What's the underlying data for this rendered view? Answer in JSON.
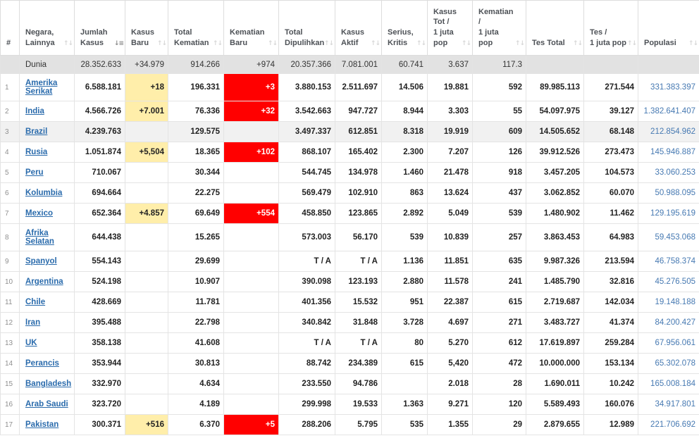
{
  "icons": {
    "sort_both": "↑↓",
    "sort_desc": "↓≡"
  },
  "colors": {
    "new_cases_bg": "#FFEEAA",
    "new_deaths_bg": "#FF0000",
    "new_deaths_text": "#FFFFFF",
    "world_row_bg": "#E2E2E2",
    "highlight_row_bg": "#F1F1F1",
    "country_link_blue": "#2A6BAC",
    "population_blue": "#4679B2"
  },
  "table": {
    "columns": [
      {
        "key": "rank",
        "label_lines": [
          "#"
        ],
        "sortable": false,
        "sort": "none"
      },
      {
        "key": "country",
        "label_lines": [
          "Negara,",
          "Lainnya"
        ],
        "sortable": true,
        "sort": "none"
      },
      {
        "key": "total_cases",
        "label_lines": [
          "Jumlah",
          "Kasus"
        ],
        "sortable": true,
        "sort": "desc"
      },
      {
        "key": "new_cases",
        "label_lines": [
          "Kasus",
          "Baru"
        ],
        "sortable": true,
        "sort": "none"
      },
      {
        "key": "total_deaths",
        "label_lines": [
          "Total",
          "Kematian"
        ],
        "sortable": true,
        "sort": "none"
      },
      {
        "key": "new_deaths",
        "label_lines": [
          "Kematian",
          "Baru"
        ],
        "sortable": true,
        "sort": "none"
      },
      {
        "key": "total_recovered",
        "label_lines": [
          "Total",
          "Dipulihkan"
        ],
        "sortable": true,
        "sort": "none"
      },
      {
        "key": "active_cases",
        "label_lines": [
          "Kasus",
          "Aktif"
        ],
        "sortable": true,
        "sort": "none"
      },
      {
        "key": "serious_critical",
        "label_lines": [
          "Serius,",
          "Kritis"
        ],
        "sortable": true,
        "sort": "none"
      },
      {
        "key": "cases_per_1m",
        "label_lines": [
          "Kasus",
          "Tot /",
          "1 juta",
          "pop"
        ],
        "sortable": true,
        "sort": "none"
      },
      {
        "key": "deaths_per_1m",
        "label_lines": [
          "Kematian",
          "/",
          "1 juta",
          "pop"
        ],
        "sortable": true,
        "sort": "none"
      },
      {
        "key": "total_tests",
        "label_lines": [
          "Tes Total"
        ],
        "sortable": true,
        "sort": "none"
      },
      {
        "key": "tests_per_1m",
        "label_lines": [
          "Tes /",
          "1 juta pop"
        ],
        "sortable": true,
        "sort": "none"
      },
      {
        "key": "population",
        "label_lines": [
          "Populasi"
        ],
        "sortable": true,
        "sort": "none"
      }
    ],
    "rows": [
      {
        "world": true,
        "rank": "",
        "country": "Dunia",
        "total_cases": "28.352.633",
        "new_cases": "+34.979",
        "total_deaths": "914.266",
        "new_deaths": "+974",
        "total_recovered": "20.357.366",
        "active_cases": "7.081.001",
        "serious_critical": "60.741",
        "cases_per_1m": "3.637",
        "deaths_per_1m": "117.3",
        "total_tests": "",
        "tests_per_1m": "",
        "population": ""
      },
      {
        "rank": "1",
        "country": "Amerika Serikat",
        "total_cases": "6.588.181",
        "new_cases": "+18",
        "total_deaths": "196.331",
        "new_deaths": "+3",
        "total_recovered": "3.880.153",
        "active_cases": "2.511.697",
        "serious_critical": "14.506",
        "cases_per_1m": "19.881",
        "deaths_per_1m": "592",
        "total_tests": "89.985.113",
        "tests_per_1m": "271.544",
        "population": "331.383.397"
      },
      {
        "rank": "2",
        "country": "India",
        "total_cases": "4.566.726",
        "new_cases": "+7.001",
        "total_deaths": "76.336",
        "new_deaths": "+32",
        "total_recovered": "3.542.663",
        "active_cases": "947.727",
        "serious_critical": "8.944",
        "cases_per_1m": "3.303",
        "deaths_per_1m": "55",
        "total_tests": "54.097.975",
        "tests_per_1m": "39.127",
        "population": "1.382.641.407"
      },
      {
        "rank": "3",
        "country": "Brazil",
        "highlight": true,
        "total_cases": "4.239.763",
        "new_cases": "",
        "total_deaths": "129.575",
        "new_deaths": "",
        "total_recovered": "3.497.337",
        "active_cases": "612.851",
        "serious_critical": "8.318",
        "cases_per_1m": "19.919",
        "deaths_per_1m": "609",
        "total_tests": "14.505.652",
        "tests_per_1m": "68.148",
        "population": "212.854.962"
      },
      {
        "rank": "4",
        "country": "Rusia",
        "total_cases": "1.051.874",
        "new_cases": "+5,504",
        "total_deaths": "18.365",
        "new_deaths": "+102",
        "total_recovered": "868.107",
        "active_cases": "165.402",
        "serious_critical": "2.300",
        "cases_per_1m": "7.207",
        "deaths_per_1m": "126",
        "total_tests": "39.912.526",
        "tests_per_1m": "273.473",
        "population": "145.946.887"
      },
      {
        "rank": "5",
        "country": "Peru",
        "total_cases": "710.067",
        "new_cases": "",
        "total_deaths": "30.344",
        "new_deaths": "",
        "total_recovered": "544.745",
        "active_cases": "134.978",
        "serious_critical": "1.460",
        "cases_per_1m": "21.478",
        "deaths_per_1m": "918",
        "total_tests": "3.457.205",
        "tests_per_1m": "104.573",
        "population": "33.060.253"
      },
      {
        "rank": "6",
        "country": "Kolumbia",
        "total_cases": "694.664",
        "new_cases": "",
        "total_deaths": "22.275",
        "new_deaths": "",
        "total_recovered": "569.479",
        "active_cases": "102.910",
        "serious_critical": "863",
        "cases_per_1m": "13.624",
        "deaths_per_1m": "437",
        "total_tests": "3.062.852",
        "tests_per_1m": "60.070",
        "population": "50.988.095"
      },
      {
        "rank": "7",
        "country": "Mexico",
        "total_cases": "652.364",
        "new_cases": "+4.857",
        "total_deaths": "69.649",
        "new_deaths": "+554",
        "total_recovered": "458.850",
        "active_cases": "123.865",
        "serious_critical": "2.892",
        "cases_per_1m": "5.049",
        "deaths_per_1m": "539",
        "total_tests": "1.480.902",
        "tests_per_1m": "11.462",
        "population": "129.195.619"
      },
      {
        "rank": "8",
        "country": "Afrika Selatan",
        "total_cases": "644.438",
        "new_cases": "",
        "total_deaths": "15.265",
        "new_deaths": "",
        "total_recovered": "573.003",
        "active_cases": "56.170",
        "serious_critical": "539",
        "cases_per_1m": "10.839",
        "deaths_per_1m": "257",
        "total_tests": "3.863.453",
        "tests_per_1m": "64.983",
        "population": "59.453.068"
      },
      {
        "rank": "9",
        "country": "Spanyol",
        "total_cases": "554.143",
        "new_cases": "",
        "total_deaths": "29.699",
        "new_deaths": "",
        "total_recovered": "T / A",
        "active_cases": "T / A",
        "serious_critical": "1.136",
        "cases_per_1m": "11.851",
        "deaths_per_1m": "635",
        "total_tests": "9.987.326",
        "tests_per_1m": "213.594",
        "population": "46.758.374"
      },
      {
        "rank": "10",
        "country": "Argentina",
        "total_cases": "524.198",
        "new_cases": "",
        "total_deaths": "10.907",
        "new_deaths": "",
        "total_recovered": "390.098",
        "active_cases": "123.193",
        "serious_critical": "2.880",
        "cases_per_1m": "11.578",
        "deaths_per_1m": "241",
        "total_tests": "1.485.790",
        "tests_per_1m": "32.816",
        "population": "45.276.505"
      },
      {
        "rank": "11",
        "country": "Chile",
        "total_cases": "428.669",
        "new_cases": "",
        "total_deaths": "11.781",
        "new_deaths": "",
        "total_recovered": "401.356",
        "active_cases": "15.532",
        "serious_critical": "951",
        "cases_per_1m": "22.387",
        "deaths_per_1m": "615",
        "total_tests": "2.719.687",
        "tests_per_1m": "142.034",
        "population": "19.148.188"
      },
      {
        "rank": "12",
        "country": "Iran",
        "total_cases": "395.488",
        "new_cases": "",
        "total_deaths": "22.798",
        "new_deaths": "",
        "total_recovered": "340.842",
        "active_cases": "31.848",
        "serious_critical": "3.728",
        "cases_per_1m": "4.697",
        "deaths_per_1m": "271",
        "total_tests": "3.483.727",
        "tests_per_1m": "41.374",
        "population": "84.200.427"
      },
      {
        "rank": "13",
        "country": "UK",
        "total_cases": "358.138",
        "new_cases": "",
        "total_deaths": "41.608",
        "new_deaths": "",
        "total_recovered": "T / A",
        "active_cases": "T / A",
        "serious_critical": "80",
        "cases_per_1m": "5.270",
        "deaths_per_1m": "612",
        "total_tests": "17.619.897",
        "tests_per_1m": "259.284",
        "population": "67.956.061"
      },
      {
        "rank": "14",
        "country": "Perancis",
        "total_cases": "353.944",
        "new_cases": "",
        "total_deaths": "30.813",
        "new_deaths": "",
        "total_recovered": "88.742",
        "active_cases": "234.389",
        "serious_critical": "615",
        "cases_per_1m": "5,420",
        "deaths_per_1m": "472",
        "total_tests": "10.000.000",
        "tests_per_1m": "153.134",
        "population": "65.302.078"
      },
      {
        "rank": "15",
        "country": "Bangladesh",
        "total_cases": "332.970",
        "new_cases": "",
        "total_deaths": "4.634",
        "new_deaths": "",
        "total_recovered": "233.550",
        "active_cases": "94.786",
        "serious_critical": "",
        "cases_per_1m": "2.018",
        "deaths_per_1m": "28",
        "total_tests": "1.690.011",
        "tests_per_1m": "10.242",
        "population": "165.008.184"
      },
      {
        "rank": "16",
        "country": "Arab Saudi",
        "total_cases": "323.720",
        "new_cases": "",
        "total_deaths": "4.189",
        "new_deaths": "",
        "total_recovered": "299.998",
        "active_cases": "19.533",
        "serious_critical": "1.363",
        "cases_per_1m": "9.271",
        "deaths_per_1m": "120",
        "total_tests": "5.589.493",
        "tests_per_1m": "160.076",
        "population": "34.917.801"
      },
      {
        "rank": "17",
        "country": "Pakistan",
        "total_cases": "300.371",
        "new_cases": "+516",
        "total_deaths": "6.370",
        "new_deaths": "+5",
        "total_recovered": "288.206",
        "active_cases": "5.795",
        "serious_critical": "535",
        "cases_per_1m": "1.355",
        "deaths_per_1m": "29",
        "total_tests": "2.879.655",
        "tests_per_1m": "12.989",
        "population": "221.706.692"
      }
    ]
  }
}
